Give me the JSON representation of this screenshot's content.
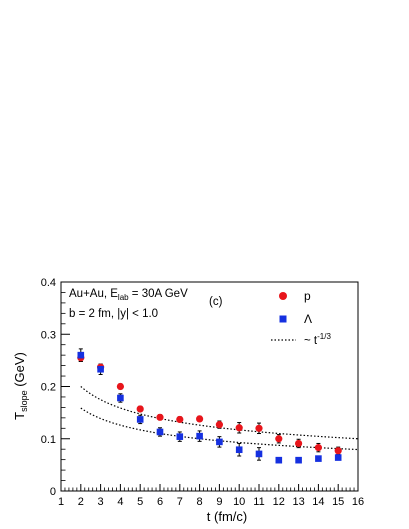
{
  "chart_data": {
    "type": "scatter",
    "ylabel_main": "T",
    "ylabel_sub": "slope",
    "ylabel_unit": " (GeV)",
    "xlabel": "t (fm/c)",
    "xlim": [
      1,
      16
    ],
    "ylim": [
      0,
      0.4
    ],
    "xticks": [
      1,
      2,
      3,
      4,
      5,
      6,
      7,
      8,
      9,
      10,
      11,
      12,
      13,
      14,
      15,
      16
    ],
    "yticks": [
      0,
      0.1,
      0.2,
      0.3,
      0.4
    ],
    "ytick_labels": [
      "0",
      "0.1",
      "0.2",
      "0.3",
      "0.4"
    ],
    "annotations": {
      "line1_a": "Au+Au, E",
      "line1_sub": "lab",
      "line1_b": " = 30A GeV",
      "line2": "b = 2 fm, |y| < 1.0",
      "panel": "(c)"
    },
    "legend_position": "top-right",
    "series": [
      {
        "name": "p",
        "marker": "circle",
        "color": "#e8151b",
        "x": [
          2,
          3,
          4,
          5,
          6,
          7,
          8,
          9,
          10,
          11,
          12,
          13,
          14,
          15
        ],
        "y": [
          0.255,
          0.237,
          0.2,
          0.157,
          0.141,
          0.137,
          0.138,
          0.127,
          0.121,
          0.12,
          0.1,
          0.091,
          0.083,
          0.077
        ],
        "err": [
          0.007,
          0.006,
          0.005,
          0.005,
          0.005,
          0.005,
          0.005,
          0.007,
          0.01,
          0.01,
          0.008,
          0.008,
          0.008,
          0.007
        ]
      },
      {
        "name": "Λ",
        "marker": "square",
        "color": "#1530e0",
        "x": [
          2,
          3,
          4,
          5,
          6,
          7,
          8,
          9,
          10,
          11,
          12,
          13,
          14,
          15
        ],
        "y": [
          0.26,
          0.233,
          0.178,
          0.137,
          0.113,
          0.104,
          0.105,
          0.094,
          0.079,
          0.071,
          0.059,
          0.059,
          0.062,
          0.064
        ],
        "err": [
          0.012,
          0.01,
          0.008,
          0.008,
          0.008,
          0.009,
          0.01,
          0.01,
          0.012,
          0.012,
          0.0,
          0.0,
          0.0,
          0.0
        ]
      }
    ],
    "fits": [
      {
        "name_base": "~ t",
        "name_exp": "-1/3",
        "style": "dotted",
        "coef": 0.252,
        "x_range": [
          2,
          16
        ]
      },
      {
        "name_base": "~ t",
        "name_exp": "-1/3",
        "style": "dotted",
        "coef": 0.2,
        "x_range": [
          2,
          16
        ]
      }
    ]
  }
}
